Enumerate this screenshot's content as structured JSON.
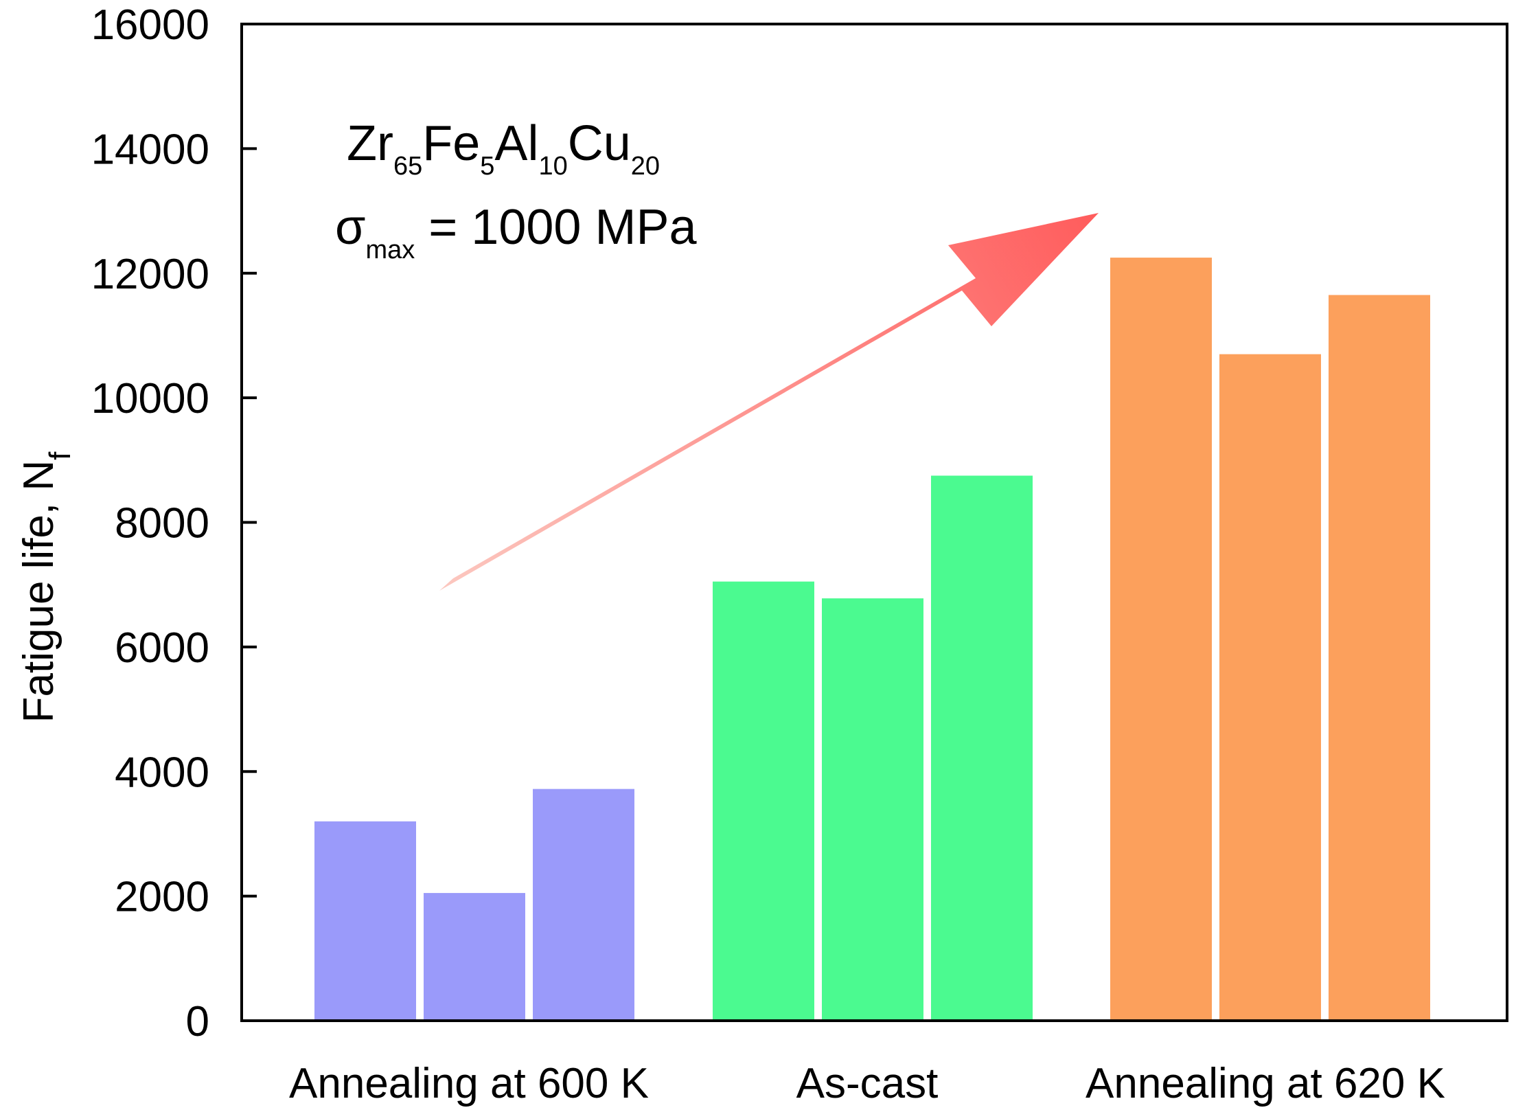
{
  "chart_data": {
    "type": "bar",
    "title": "",
    "xlabel": "",
    "ylabel": "Fatigue life, N",
    "ylabel_subscript": "f",
    "ylim": [
      0,
      16000
    ],
    "yticks": [
      0,
      2000,
      4000,
      6000,
      8000,
      10000,
      12000,
      14000,
      16000
    ],
    "grid": false,
    "categories": [
      "Annealing at 600 K",
      "As-cast",
      "Annealing at 620 K"
    ],
    "groups": [
      {
        "name": "Annealing at 600 K",
        "color": "#9a9afa",
        "values": [
          3200,
          2050,
          3720
        ]
      },
      {
        "name": "As-cast",
        "color": "#4bfa90",
        "values": [
          7050,
          6780,
          8750
        ]
      },
      {
        "name": "Annealing at 620 K",
        "color": "#fca05c",
        "values": [
          12250,
          10700,
          11650
        ]
      }
    ],
    "annotations": {
      "composition": [
        {
          "text": "Zr",
          "sub": false
        },
        {
          "text": "65",
          "sub": true
        },
        {
          "text": "Fe",
          "sub": false
        },
        {
          "text": "5",
          "sub": true
        },
        {
          "text": "Al",
          "sub": false
        },
        {
          "text": "10",
          "sub": true
        },
        {
          "text": "Cu",
          "sub": false
        },
        {
          "text": "20",
          "sub": true
        }
      ],
      "stress": {
        "symbol": "σ",
        "sub": "max",
        "text": "= 1000 MPa"
      },
      "trend_arrow": {
        "direction": "increasing",
        "color_start": "#fcc8c0",
        "color_end": "#ff5c5c"
      }
    }
  }
}
